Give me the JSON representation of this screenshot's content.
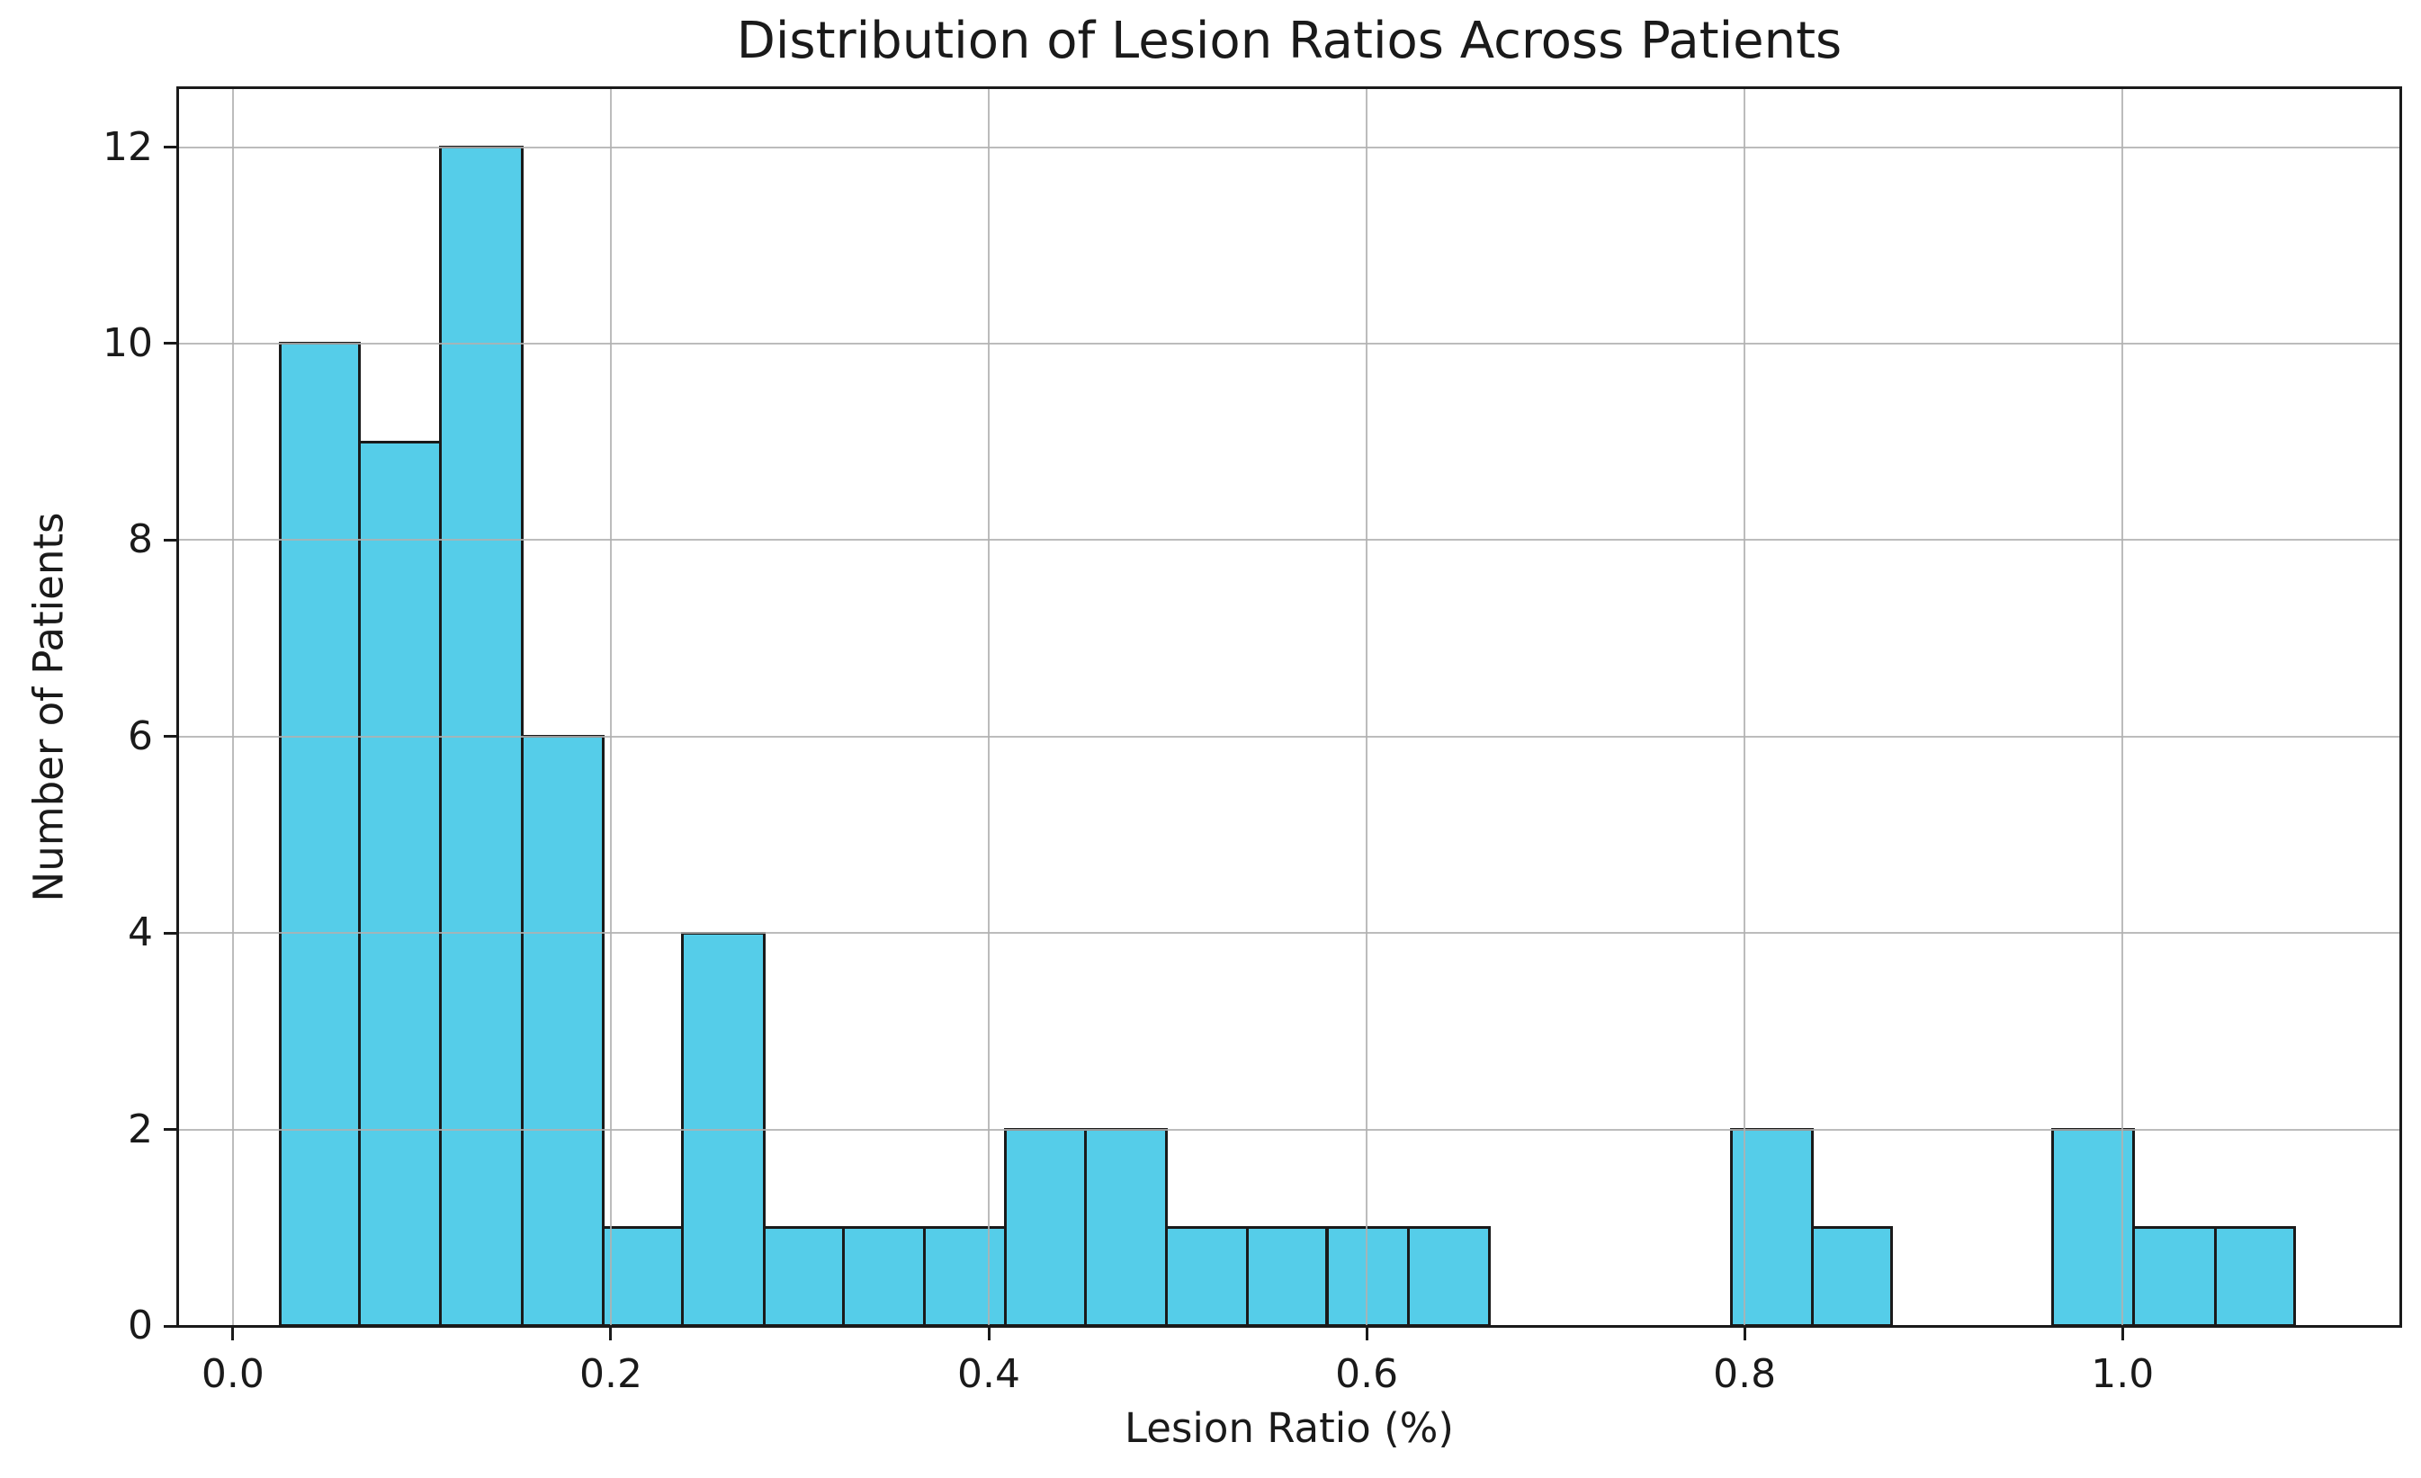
{
  "window": {
    "background": "#ffffff"
  },
  "chart_data": {
    "type": "bar",
    "subtype": "histogram",
    "title": "Distribution of Lesion Ratios Across Patients",
    "xlabel": "Lesion Ratio (%)",
    "ylabel": "Number of Patients",
    "bin_edges": [
      0.025,
      0.067,
      0.11,
      0.153,
      0.196,
      0.238,
      0.281,
      0.323,
      0.366,
      0.409,
      0.451,
      0.494,
      0.537,
      0.579,
      0.622,
      0.665,
      0.707,
      0.75,
      0.793,
      0.836,
      0.878,
      0.921,
      0.963,
      1.006,
      1.049,
      1.091
    ],
    "counts": [
      10,
      9,
      12,
      6,
      1,
      4,
      1,
      1,
      1,
      2,
      2,
      1,
      1,
      1,
      1,
      0,
      0,
      0,
      2,
      1,
      0,
      0,
      2,
      1,
      1
    ],
    "xlim": [
      -0.029,
      1.147
    ],
    "ylim": [
      0,
      12.6
    ],
    "x_ticks": [
      0.0,
      0.2,
      0.4,
      0.6,
      0.8,
      1.0
    ],
    "x_tick_labels": [
      "0.0",
      "0.2",
      "0.4",
      "0.6",
      "0.8",
      "1.0"
    ],
    "y_ticks": [
      0,
      2,
      4,
      6,
      8,
      10,
      12
    ],
    "y_tick_labels": [
      "0",
      "2",
      "4",
      "6",
      "8",
      "10",
      "12"
    ],
    "grid": true,
    "grid_axis": "both",
    "grid_above_bars": true,
    "legend": false,
    "colors": {
      "bar_fill": "#55cde9",
      "bar_edge": "#1a1a1a",
      "grid": "#b0b0b0",
      "spine": "#1a1a1a",
      "text": "#1a1a1a",
      "background": "#ffffff"
    }
  }
}
